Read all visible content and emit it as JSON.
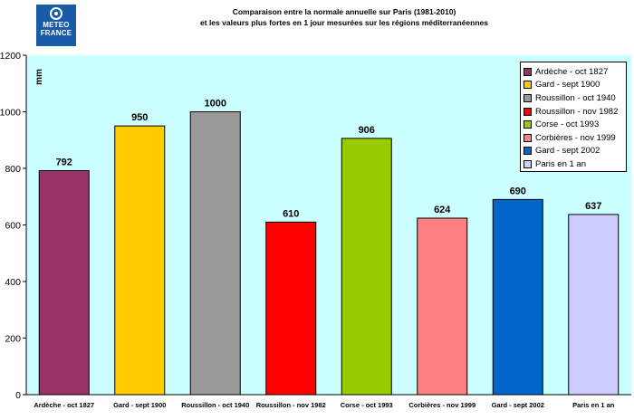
{
  "logo": {
    "line1": "METEO",
    "line2": "FRANCE"
  },
  "chart_data": {
    "type": "bar",
    "title_line1": "Comparaison entre la normale annuelle sur Paris (1981-2010)",
    "title_line2": "et les valeurs plus fortes en 1 jour mesurées sur les régions méditerranéennes",
    "ylabel": "mm",
    "xlabel": "",
    "ylim": [
      0,
      1200
    ],
    "yticks": [
      0,
      200,
      400,
      600,
      800,
      1000,
      1200
    ],
    "grid": false,
    "legend_position": "top-right",
    "plot_background": "#ccffff",
    "categories": [
      "Ardèche - oct 1827",
      "Gard - sept 1900",
      "Roussillon - oct 1940",
      "Roussillon -  nov 1982",
      "Corse - oct 1993",
      "Corbières - nov 1999",
      "Gard - sept 2002",
      "Paris en 1 an"
    ],
    "values": [
      792,
      950,
      1000,
      610,
      906,
      624,
      690,
      637
    ],
    "value_labels": [
      "792",
      "950",
      "1000",
      "610",
      "906",
      "624",
      "690",
      "637"
    ],
    "colors": [
      "#993366",
      "#ffcc00",
      "#999999",
      "#ff0000",
      "#99cc00",
      "#ff8080",
      "#0066cc",
      "#ccccff"
    ],
    "legend": [
      "Ardèche - oct 1827",
      "Gard - sept 1900",
      "Roussillon - oct 1940",
      "Roussillon -  nov 1982",
      "Corse - oct 1993",
      "Corbières - nov 1999",
      "Gard - sept 2002",
      "Paris en 1 an"
    ]
  }
}
